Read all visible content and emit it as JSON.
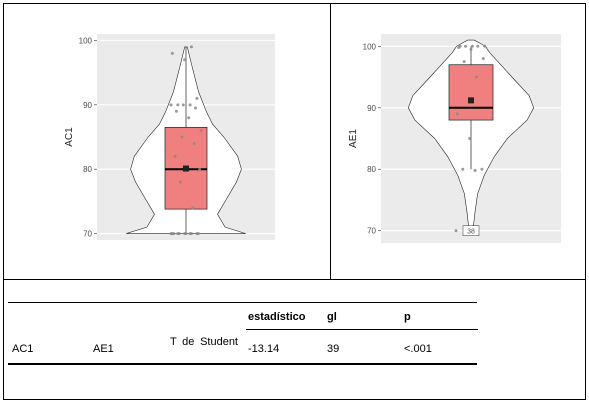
{
  "chart_data": [
    {
      "type": "violin",
      "ylabel": "AC1",
      "ylim": [
        69,
        101
      ],
      "yticks": [
        "70",
        "80",
        "90",
        "100"
      ],
      "box": {
        "q1": 73.8,
        "median": 80,
        "q3": 86.5,
        "mean": 80.1,
        "whisker_low": 70,
        "whisker_high": 99
      },
      "density": [
        [
          70,
          0.95
        ],
        [
          71,
          0.62
        ],
        [
          73,
          0.5
        ],
        [
          75,
          0.62
        ],
        [
          78,
          0.8
        ],
        [
          80,
          0.88
        ],
        [
          82,
          0.82
        ],
        [
          85,
          0.6
        ],
        [
          87,
          0.42
        ],
        [
          89,
          0.32
        ],
        [
          92,
          0.2
        ],
        [
          95,
          0.12
        ],
        [
          97,
          0.07
        ],
        [
          99,
          0.02
        ]
      ],
      "points": [
        70,
        70,
        70,
        70,
        70,
        70,
        70,
        70,
        70,
        70,
        70,
        74,
        78,
        80,
        80,
        82,
        84,
        85,
        86,
        88,
        89,
        89.5,
        90,
        90,
        90,
        90,
        91,
        97,
        98,
        99
      ]
    },
    {
      "type": "violin",
      "ylabel": "AE1",
      "ylim": [
        68,
        102
      ],
      "yticks": [
        "70",
        "80",
        "90",
        "100"
      ],
      "box": {
        "q1": 88,
        "median": 90,
        "q3": 97,
        "mean": 91.2,
        "whisker_low": 80,
        "whisker_high": 100
      },
      "density": [
        [
          70,
          0.04
        ],
        [
          71,
          0.04
        ],
        [
          73,
          0.06
        ],
        [
          76,
          0.1
        ],
        [
          79,
          0.2
        ],
        [
          82,
          0.35
        ],
        [
          85,
          0.55
        ],
        [
          88,
          0.85
        ],
        [
          90,
          0.95
        ],
        [
          92,
          0.88
        ],
        [
          95,
          0.62
        ],
        [
          97,
          0.45
        ],
        [
          99,
          0.28
        ],
        [
          100,
          0.22
        ],
        [
          101,
          0.05
        ]
      ],
      "points": [
        70,
        79.8,
        80,
        80,
        85,
        89,
        95,
        97.5,
        98,
        99.5,
        99.8,
        100,
        100,
        100,
        100,
        100
      ],
      "outlier_label": "38"
    }
  ],
  "table": {
    "headers": {
      "statistic": "estadístico",
      "df": "gl",
      "p": "p"
    },
    "row": {
      "var1": "AC1",
      "var2": "AE1",
      "test": "T de Student",
      "statistic": "-13.14",
      "df": "39",
      "p": "<.001"
    }
  },
  "colors": {
    "panel": "#ebebeb",
    "violin_fill": "#ffffff",
    "box_fill": "#f08080",
    "point": "#888888"
  }
}
